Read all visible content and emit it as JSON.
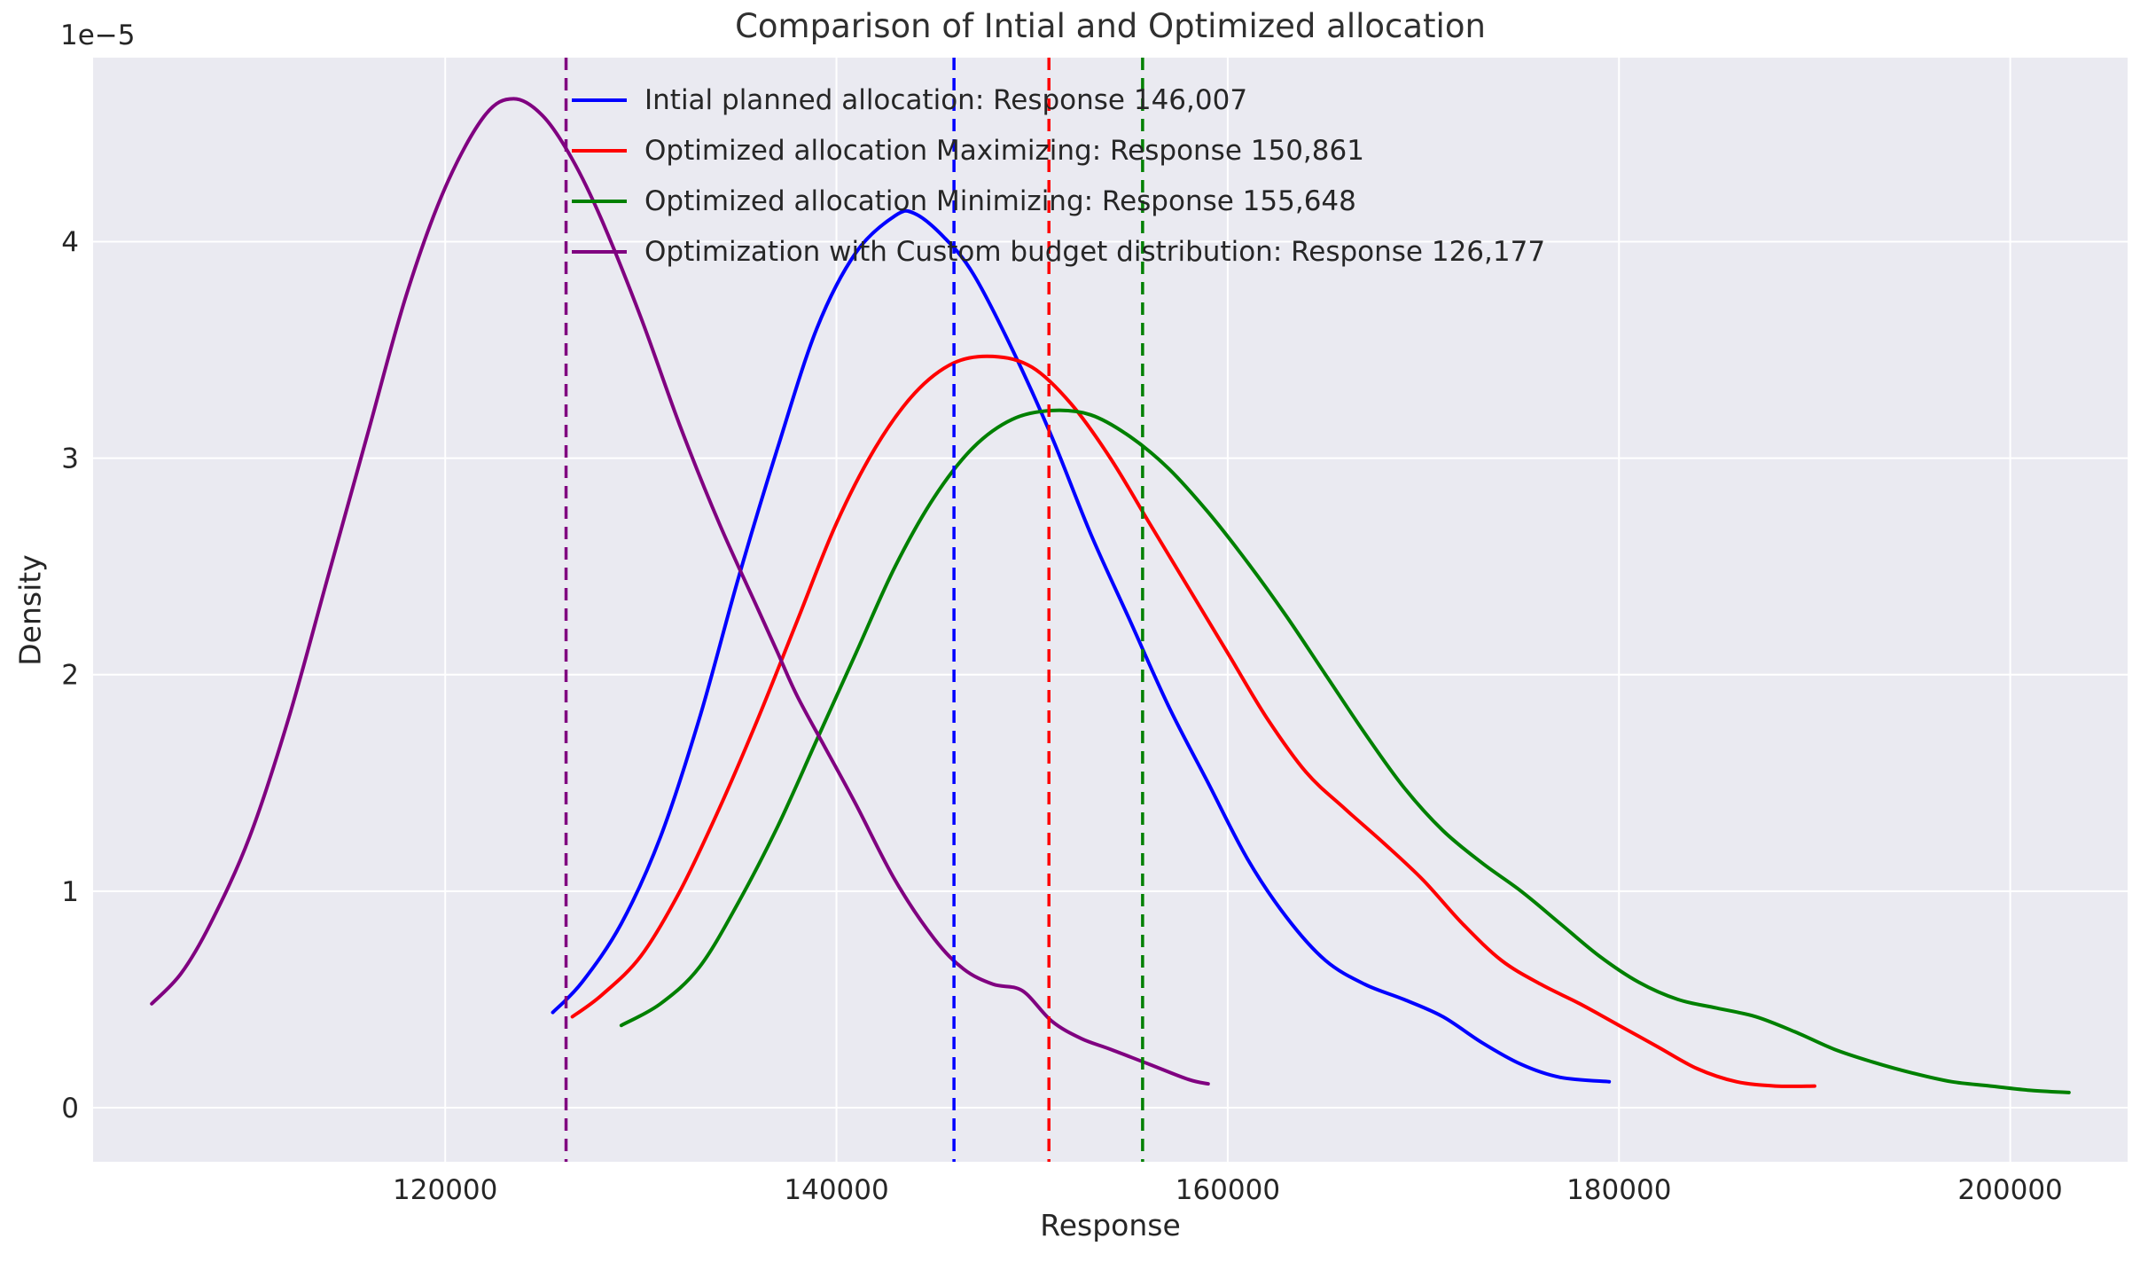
{
  "chart_data": {
    "type": "line",
    "subtype": "kde-density",
    "title": "Comparison of Intial and Optimized allocation",
    "xlabel": "Response",
    "ylabel": "Density",
    "y_offset_label": "1e−5",
    "y_scale": 1e-05,
    "grid": true,
    "legend_position": "upper center",
    "xlim": [
      102000,
      206000
    ],
    "ylim": [
      -0.25,
      4.85
    ],
    "colors": {
      "plot_background": "#eaeaf1",
      "grid": "#ffffff",
      "text": "#262626"
    },
    "x_ticks": [
      {
        "value": 120000,
        "label": "120000"
      },
      {
        "value": 140000,
        "label": "140000"
      },
      {
        "value": 160000,
        "label": "160000"
      },
      {
        "value": 180000,
        "label": "180000"
      },
      {
        "value": 200000,
        "label": "200000"
      }
    ],
    "y_ticks": [
      {
        "value": 0,
        "label": "0"
      },
      {
        "value": 1,
        "label": "1"
      },
      {
        "value": 2,
        "label": "2"
      },
      {
        "value": 3,
        "label": "3"
      },
      {
        "value": 4,
        "label": "4"
      }
    ],
    "series": [
      {
        "name": "initial-planned",
        "label": "Intial planned allocation: Response 146,007",
        "color": "#0000ff",
        "mean_line": 146007,
        "points": [
          [
            125500,
            0.44
          ],
          [
            127000,
            0.58
          ],
          [
            129000,
            0.85
          ],
          [
            131000,
            1.25
          ],
          [
            133000,
            1.8
          ],
          [
            135000,
            2.45
          ],
          [
            137000,
            3.05
          ],
          [
            139000,
            3.6
          ],
          [
            141000,
            3.95
          ],
          [
            143000,
            4.12
          ],
          [
            144000,
            4.13
          ],
          [
            145500,
            4.02
          ],
          [
            147000,
            3.85
          ],
          [
            149000,
            3.5
          ],
          [
            151000,
            3.1
          ],
          [
            153000,
            2.65
          ],
          [
            155000,
            2.25
          ],
          [
            157000,
            1.85
          ],
          [
            159000,
            1.5
          ],
          [
            161000,
            1.15
          ],
          [
            163000,
            0.88
          ],
          [
            165000,
            0.68
          ],
          [
            167000,
            0.57
          ],
          [
            169000,
            0.5
          ],
          [
            171000,
            0.42
          ],
          [
            173000,
            0.3
          ],
          [
            175000,
            0.2
          ],
          [
            177000,
            0.14
          ],
          [
            179500,
            0.12
          ]
        ]
      },
      {
        "name": "optimized-maximizing",
        "label": "Optimized allocation Maximizing: Response 150,861",
        "color": "#ff0000",
        "mean_line": 150861,
        "points": [
          [
            126500,
            0.42
          ],
          [
            128000,
            0.52
          ],
          [
            130000,
            0.7
          ],
          [
            132000,
            1.0
          ],
          [
            134000,
            1.38
          ],
          [
            136000,
            1.8
          ],
          [
            138000,
            2.25
          ],
          [
            140000,
            2.7
          ],
          [
            142000,
            3.05
          ],
          [
            144000,
            3.3
          ],
          [
            146000,
            3.44
          ],
          [
            148000,
            3.47
          ],
          [
            150000,
            3.42
          ],
          [
            152000,
            3.25
          ],
          [
            154000,
            3.0
          ],
          [
            156000,
            2.7
          ],
          [
            158000,
            2.4
          ],
          [
            160000,
            2.1
          ],
          [
            162000,
            1.8
          ],
          [
            164000,
            1.55
          ],
          [
            166000,
            1.38
          ],
          [
            168000,
            1.22
          ],
          [
            170000,
            1.05
          ],
          [
            172000,
            0.85
          ],
          [
            174000,
            0.68
          ],
          [
            176000,
            0.57
          ],
          [
            178000,
            0.48
          ],
          [
            180000,
            0.38
          ],
          [
            182000,
            0.28
          ],
          [
            184000,
            0.18
          ],
          [
            186000,
            0.12
          ],
          [
            188000,
            0.1
          ],
          [
            190000,
            0.1
          ]
        ]
      },
      {
        "name": "optimized-minimizing",
        "label": "Optimized allocation Minimizing: Response 155,648",
        "color": "#008000",
        "mean_line": 155648,
        "points": [
          [
            129000,
            0.38
          ],
          [
            131000,
            0.48
          ],
          [
            133000,
            0.65
          ],
          [
            135000,
            0.95
          ],
          [
            137000,
            1.3
          ],
          [
            139000,
            1.7
          ],
          [
            141000,
            2.1
          ],
          [
            143000,
            2.5
          ],
          [
            145000,
            2.82
          ],
          [
            147000,
            3.05
          ],
          [
            149000,
            3.18
          ],
          [
            151000,
            3.22
          ],
          [
            153000,
            3.2
          ],
          [
            155000,
            3.1
          ],
          [
            157000,
            2.95
          ],
          [
            159000,
            2.75
          ],
          [
            161000,
            2.52
          ],
          [
            163000,
            2.27
          ],
          [
            165000,
            2.0
          ],
          [
            167000,
            1.73
          ],
          [
            169000,
            1.48
          ],
          [
            171000,
            1.28
          ],
          [
            173000,
            1.13
          ],
          [
            175000,
            1.0
          ],
          [
            177000,
            0.85
          ],
          [
            179000,
            0.7
          ],
          [
            181000,
            0.58
          ],
          [
            183000,
            0.5
          ],
          [
            185000,
            0.46
          ],
          [
            187000,
            0.42
          ],
          [
            189000,
            0.35
          ],
          [
            191000,
            0.27
          ],
          [
            193000,
            0.21
          ],
          [
            195000,
            0.16
          ],
          [
            197000,
            0.12
          ],
          [
            199000,
            0.1
          ],
          [
            201000,
            0.08
          ],
          [
            203000,
            0.07
          ]
        ]
      },
      {
        "name": "custom-budget",
        "label": "Optimization with Custom budget distribution: Response 126,177",
        "color": "#800080",
        "mean_line": 126177,
        "points": [
          [
            105000,
            0.48
          ],
          [
            106500,
            0.62
          ],
          [
            108000,
            0.85
          ],
          [
            110000,
            1.25
          ],
          [
            112000,
            1.8
          ],
          [
            114000,
            2.45
          ],
          [
            116000,
            3.1
          ],
          [
            118000,
            3.75
          ],
          [
            120000,
            4.25
          ],
          [
            122000,
            4.58
          ],
          [
            123500,
            4.66
          ],
          [
            125000,
            4.58
          ],
          [
            126500,
            4.38
          ],
          [
            128000,
            4.1
          ],
          [
            130000,
            3.65
          ],
          [
            132000,
            3.15
          ],
          [
            134000,
            2.7
          ],
          [
            136000,
            2.3
          ],
          [
            137000,
            2.1
          ],
          [
            138000,
            1.9
          ],
          [
            139500,
            1.65
          ],
          [
            141000,
            1.4
          ],
          [
            143000,
            1.05
          ],
          [
            145000,
            0.78
          ],
          [
            146500,
            0.64
          ],
          [
            148000,
            0.57
          ],
          [
            149500,
            0.54
          ],
          [
            151000,
            0.4
          ],
          [
            152500,
            0.32
          ],
          [
            154000,
            0.27
          ],
          [
            156000,
            0.2
          ],
          [
            158000,
            0.13
          ],
          [
            159000,
            0.11
          ]
        ]
      }
    ]
  }
}
